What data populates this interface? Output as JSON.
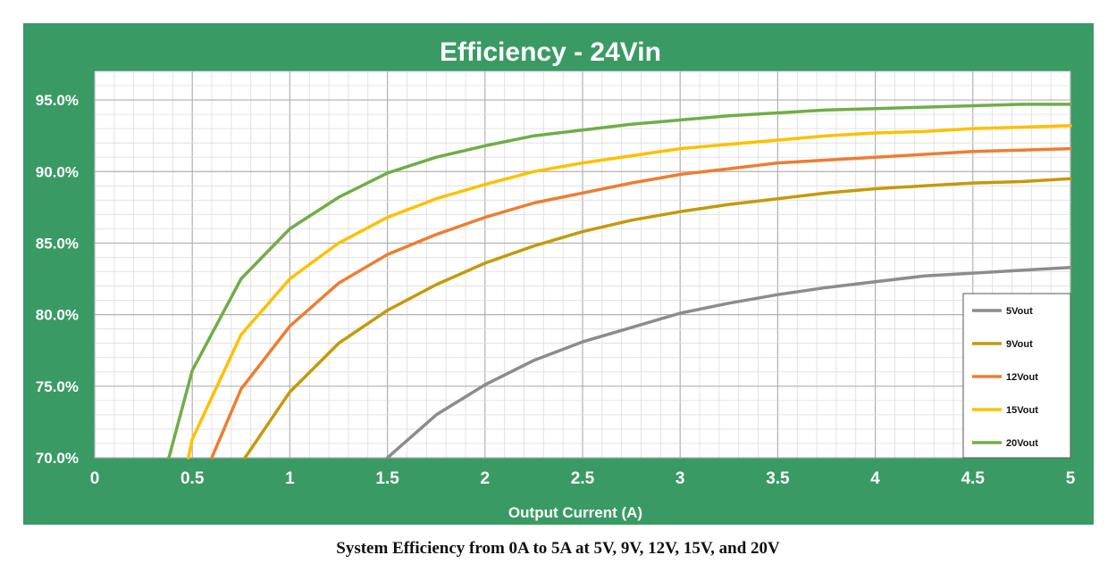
{
  "caption": "System Efficiency from 0A to 5A at 5V, 9V, 12V, 15V, and 20V",
  "chart_data": {
    "type": "line",
    "title": "Efficiency - 24Vin",
    "xlabel": "Output Current (A)",
    "ylabel": "",
    "xlim": [
      0,
      5
    ],
    "ylim": [
      70,
      97
    ],
    "x_ticks": [
      0,
      0.5,
      1,
      1.5,
      2,
      2.5,
      3,
      3.5,
      4,
      4.5,
      5
    ],
    "x_tick_labels": [
      "0",
      "0.5",
      "1",
      "1.5",
      "2",
      "2.5",
      "3",
      "3.5",
      "4",
      "4.5",
      "5"
    ],
    "y_ticks": [
      70,
      75,
      80,
      85,
      90,
      95
    ],
    "y_tick_labels": [
      "70.0%",
      "75.0%",
      "80.0%",
      "85.0%",
      "90.0%",
      "95.0%"
    ],
    "grid": true,
    "legend_position": "bottom-right",
    "colors": {
      "background": "#3a9a64",
      "plot_area": "#ffffff",
      "grid": "#c8c8c8"
    },
    "series": [
      {
        "name": "5Vout",
        "color": "#8c8c8c",
        "x": [
          1.5,
          1.75,
          2.0,
          2.25,
          2.5,
          2.75,
          3.0,
          3.25,
          3.5,
          3.75,
          4.0,
          4.25,
          4.5,
          4.75,
          5.0
        ],
        "y": [
          70.0,
          73.0,
          75.1,
          76.8,
          78.1,
          79.1,
          80.1,
          80.8,
          81.4,
          81.9,
          82.3,
          82.7,
          82.9,
          83.1,
          83.3
        ]
      },
      {
        "name": "9Vout",
        "color": "#c49a0a",
        "x": [
          0.77,
          1.0,
          1.25,
          1.5,
          1.75,
          2.0,
          2.25,
          2.5,
          2.75,
          3.0,
          3.25,
          3.5,
          3.75,
          4.0,
          4.25,
          4.5,
          4.75,
          5.0
        ],
        "y": [
          70.0,
          74.6,
          78.0,
          80.3,
          82.1,
          83.6,
          84.8,
          85.8,
          86.6,
          87.2,
          87.7,
          88.1,
          88.5,
          88.8,
          89.0,
          89.2,
          89.3,
          89.5
        ]
      },
      {
        "name": "12Vout",
        "color": "#ee7d31",
        "x": [
          0.6,
          0.75,
          1.0,
          1.25,
          1.5,
          1.75,
          2.0,
          2.25,
          2.5,
          2.75,
          3.0,
          3.25,
          3.5,
          3.75,
          4.0,
          4.25,
          4.5,
          4.75,
          5.0
        ],
        "y": [
          70.0,
          74.8,
          79.2,
          82.2,
          84.2,
          85.6,
          86.8,
          87.8,
          88.5,
          89.2,
          89.8,
          90.2,
          90.6,
          90.8,
          91.0,
          91.2,
          91.4,
          91.5,
          91.6
        ]
      },
      {
        "name": "15Vout",
        "color": "#fec000",
        "x": [
          0.48,
          0.5,
          0.75,
          1.0,
          1.25,
          1.5,
          1.75,
          2.0,
          2.25,
          2.5,
          2.75,
          3.0,
          3.25,
          3.5,
          3.75,
          4.0,
          4.25,
          4.5,
          4.75,
          5.0
        ],
        "y": [
          70.0,
          71.3,
          78.6,
          82.5,
          85.0,
          86.8,
          88.1,
          89.1,
          90.0,
          90.6,
          91.1,
          91.6,
          91.9,
          92.2,
          92.5,
          92.7,
          92.8,
          93.0,
          93.1,
          93.2
        ]
      },
      {
        "name": "20Vout",
        "color": "#70ad47",
        "x": [
          0.38,
          0.5,
          0.75,
          1.0,
          1.25,
          1.5,
          1.75,
          2.0,
          2.25,
          2.5,
          2.75,
          3.0,
          3.25,
          3.5,
          3.75,
          4.0,
          4.25,
          4.5,
          4.75,
          5.0
        ],
        "y": [
          70.0,
          76.1,
          82.5,
          86.0,
          88.2,
          89.9,
          91.0,
          91.8,
          92.5,
          92.9,
          93.3,
          93.6,
          93.9,
          94.1,
          94.3,
          94.4,
          94.5,
          94.6,
          94.7,
          94.7
        ]
      }
    ]
  }
}
